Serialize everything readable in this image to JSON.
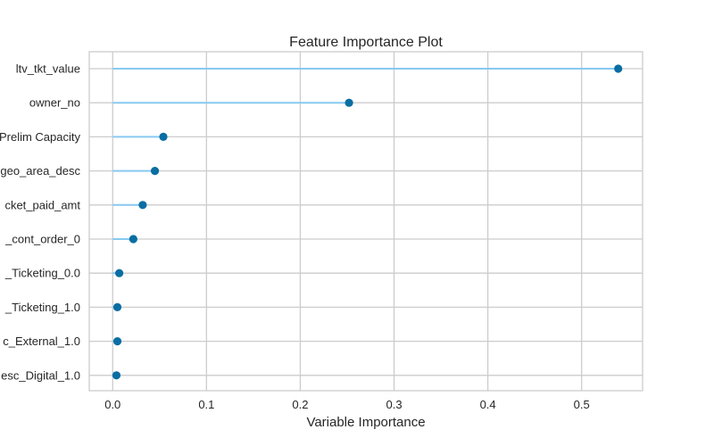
{
  "chart_data": {
    "type": "lollipop",
    "title": "Feature Importance Plot",
    "xlabel": "Variable Importance",
    "ylabel": "",
    "xlim": [
      -0.025,
      0.565
    ],
    "xticks": [
      0.0,
      0.1,
      0.2,
      0.3,
      0.4,
      0.5
    ],
    "xtick_labels": [
      "0.0",
      "0.1",
      "0.2",
      "0.3",
      "0.4",
      "0.5"
    ],
    "grid": true,
    "categories": [
      "ltv_tkt_value",
      "owner_no",
      "Prelim Capacity",
      "geo_area_desc",
      "cket_paid_amt",
      "_cont_order_0",
      "_Ticketing_0.0",
      "_Ticketing_1.0",
      "c_External_1.0",
      "esc_Digital_1.0"
    ],
    "values": [
      0.539,
      0.252,
      0.054,
      0.045,
      0.032,
      0.022,
      0.007,
      0.005,
      0.005,
      0.004
    ],
    "colors": {
      "stem": "#87c9f0",
      "marker": "#0a6ea3",
      "grid": "#cccccc",
      "frame": "#cccccc"
    }
  }
}
